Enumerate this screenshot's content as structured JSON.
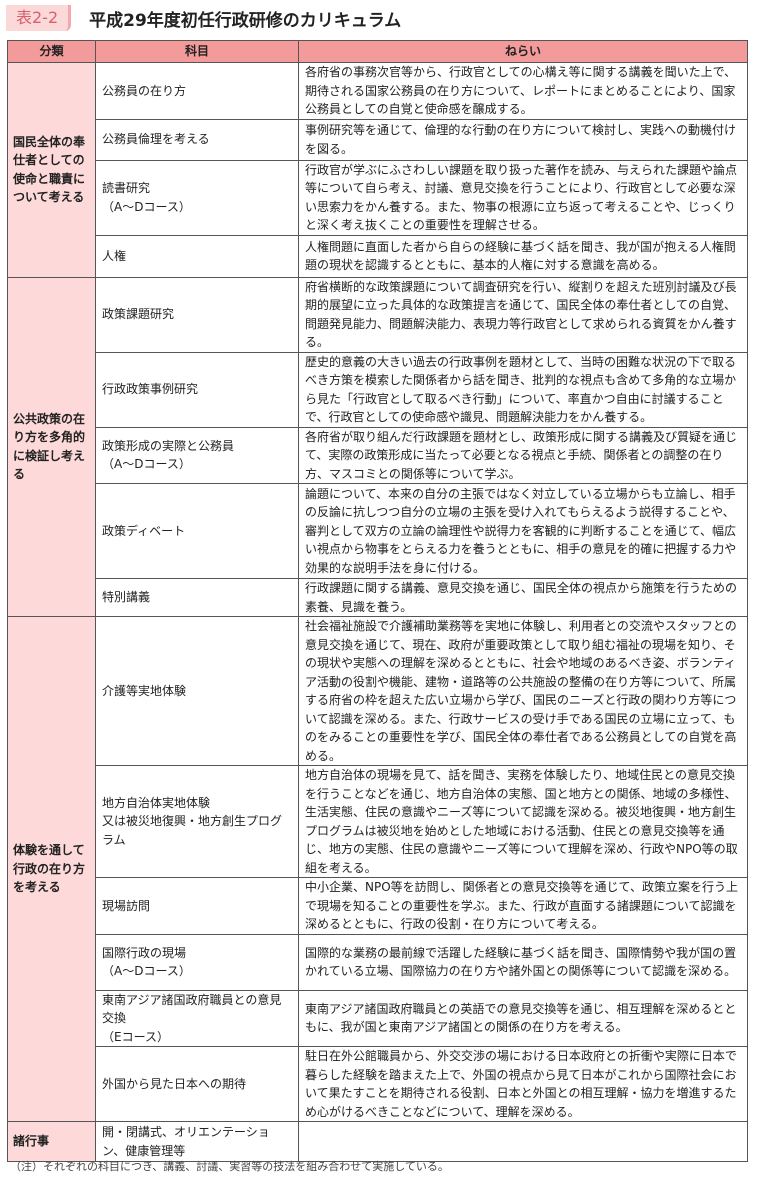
{
  "header": {
    "badge": "表2-2",
    "title": "平成29年度初任行政研修のカリキュラム"
  },
  "columns": [
    "分類",
    "科目",
    "ねらい"
  ],
  "groups": [
    {
      "category": "国民全体の奉仕者としての使命と職責について考える",
      "rows": [
        {
          "subject": "公務員の在り方",
          "aim": "各府省の事務次官等から、行政官としての心構え等に関する講義を聞いた上で、期待される国家公務員の在り方について、レポートにまとめることにより、国家公務員としての自覚と使命感を醸成する。"
        },
        {
          "subject": "公務員倫理を考える",
          "aim": "事例研究等を通じて、倫理的な行動の在り方について検討し、実践への動機付けを図る。"
        },
        {
          "subject": "読書研究\n（A～Dコース）",
          "aim": "行政官が学ぶにふさわしい課題を取り扱った著作を読み、与えられた課題や論点等について自ら考え、討議、意見交換を行うことにより、行政官として必要な深い思索力をかん養する。また、物事の根源に立ち返って考えることや、じっくりと深く考え抜くことの重要性を理解させる。"
        },
        {
          "subject": "人権",
          "aim": "人権問題に直面した者から自らの経験に基づく話を聞き、我が国が抱える人権問題の現状を認識するとともに、基本的人権に対する意識を高める。"
        }
      ]
    },
    {
      "category": "公共政策の在り方を多角的に検証し考える",
      "rows": [
        {
          "subject": "政策課題研究",
          "aim": "府省横断的な政策課題について調査研究を行い、縦割りを超えた班別討議及び長期的展望に立った具体的な政策提言を通じて、国民全体の奉仕者としての自覚、問題発見能力、問題解決能力、表現力等行政官として求められる資質をかん養する。"
        },
        {
          "subject": "行政政策事例研究",
          "aim": "歴史的意義の大きい過去の行政事例を題材として、当時の困難な状況の下で取るべき方策を模索した関係者から話を聞き、批判的な視点も含めて多角的な立場から見た「行政官として取るべき行動」について、率直かつ自由に討議することで、行政官としての使命感や識見、問題解決能力をかん養する。"
        },
        {
          "subject": "政策形成の実際と公務員\n（A～Dコース）",
          "aim": "各府省が取り組んだ行政課題を題材とし、政策形成に関する講義及び質疑を通じて、実際の政策形成に当たって必要となる視点と手続、関係者との調整の在り方、マスコミとの関係等について学ぶ。"
        },
        {
          "subject": "政策ディベート",
          "aim": "論題について、本来の自分の主張ではなく対立している立場からも立論し、相手の反論に抗しつつ自分の立場の主張を受け入れてもらえるよう説得することや、審判として双方の立論の論理性や説得力を客観的に判断することを通じて、幅広い視点から物事をとらえる力を養うとともに、相手の意見を的確に把握する力や効果的な説明手法を身に付ける。"
        },
        {
          "subject": "特別講義",
          "aim": "行政課題に関する講義、意見交換を通じ、国民全体の視点から施策を行うための素養、見識を養う。"
        }
      ]
    },
    {
      "category": "体験を通して行政の在り方を考える",
      "rows": [
        {
          "subject": "介護等実地体験",
          "aim": "社会福祉施設で介護補助業務等を実地に体験し、利用者との交流やスタッフとの意見交換を通じて、現在、政府が重要政策として取り組む福祉の現場を知り、その現状や実態への理解を深めるとともに、社会や地域のあるべき姿、ボランティア活動の役割や機能、建物・道路等の公共施設の整備の在り方等について、所属する府省の枠を超えた広い立場から学び、国民のニーズと行政の関わり方等について認識を深める。また、行政サービスの受け手である国民の立場に立って、ものをみることの重要性を学び、国民全体の奉仕者である公務員としての自覚を高める。"
        },
        {
          "subject": "地方自治体実地体験\n又は被災地復興・地方創生プログラム",
          "aim": "地方自治体の現場を見て、話を聞き、実務を体験したり、地域住民との意見交換を行うことなどを通じ、地方自治体の実態、国と地方との関係、地域の多様性、生活実態、住民の意識やニーズ等について認識を深める。被災地復興・地方創生プログラムは被災地を始めとした地域における活動、住民との意見交換等を通じ、地方の実態、住民の意識やニーズ等について理解を深め、行政やNPO等の取組を考える。"
        },
        {
          "subject": "現場訪問",
          "aim": "中小企業、NPO等を訪問し、関係者との意見交換等を通じて、政策立案を行う上で現場を知ることの重要性を学ぶ。また、行政が直面する諸課題について認識を深めるとともに、行政の役割・在り方について考える。"
        },
        {
          "subject": "国際行政の現場\n（A～Dコース）",
          "aim": "国際的な業務の最前線で活躍した経験に基づく話を聞き、国際情勢や我が国の置かれている立場、国際協力の在り方や諸外国との関係等について認識を深める。"
        },
        {
          "subject": "東南アジア諸国政府職員との意見交換\n（Eコース）",
          "aim": "東南アジア諸国政府職員との英語での意見交換等を通じ、相互理解を深めるとともに、我が国と東南アジア諸国との関係の在り方を考える。"
        },
        {
          "subject": "外国から見た日本への期待",
          "aim": "駐日在外公館職員から、外交交渉の場における日本政府との折衝や実際に日本で暮らした経験を踏まえた上で、外国の視点から見て日本がこれから国際社会において果たすことを期待される役割、日本と外国との相互理解・協力を増進するため心がけるべきことなどについて、理解を深める。"
        }
      ]
    },
    {
      "category": "諸行事",
      "rows": [
        {
          "subject": "開・閉講式、オリエンテーション、健康管理等",
          "aim": ""
        }
      ]
    }
  ],
  "note": "（注）それぞれの科目につき、講義、討議、実習等の技法を組み合わせて実施している。",
  "colors": {
    "header": "#f39b9b",
    "category": "#fdd9d9",
    "badge": "#d9606a"
  }
}
